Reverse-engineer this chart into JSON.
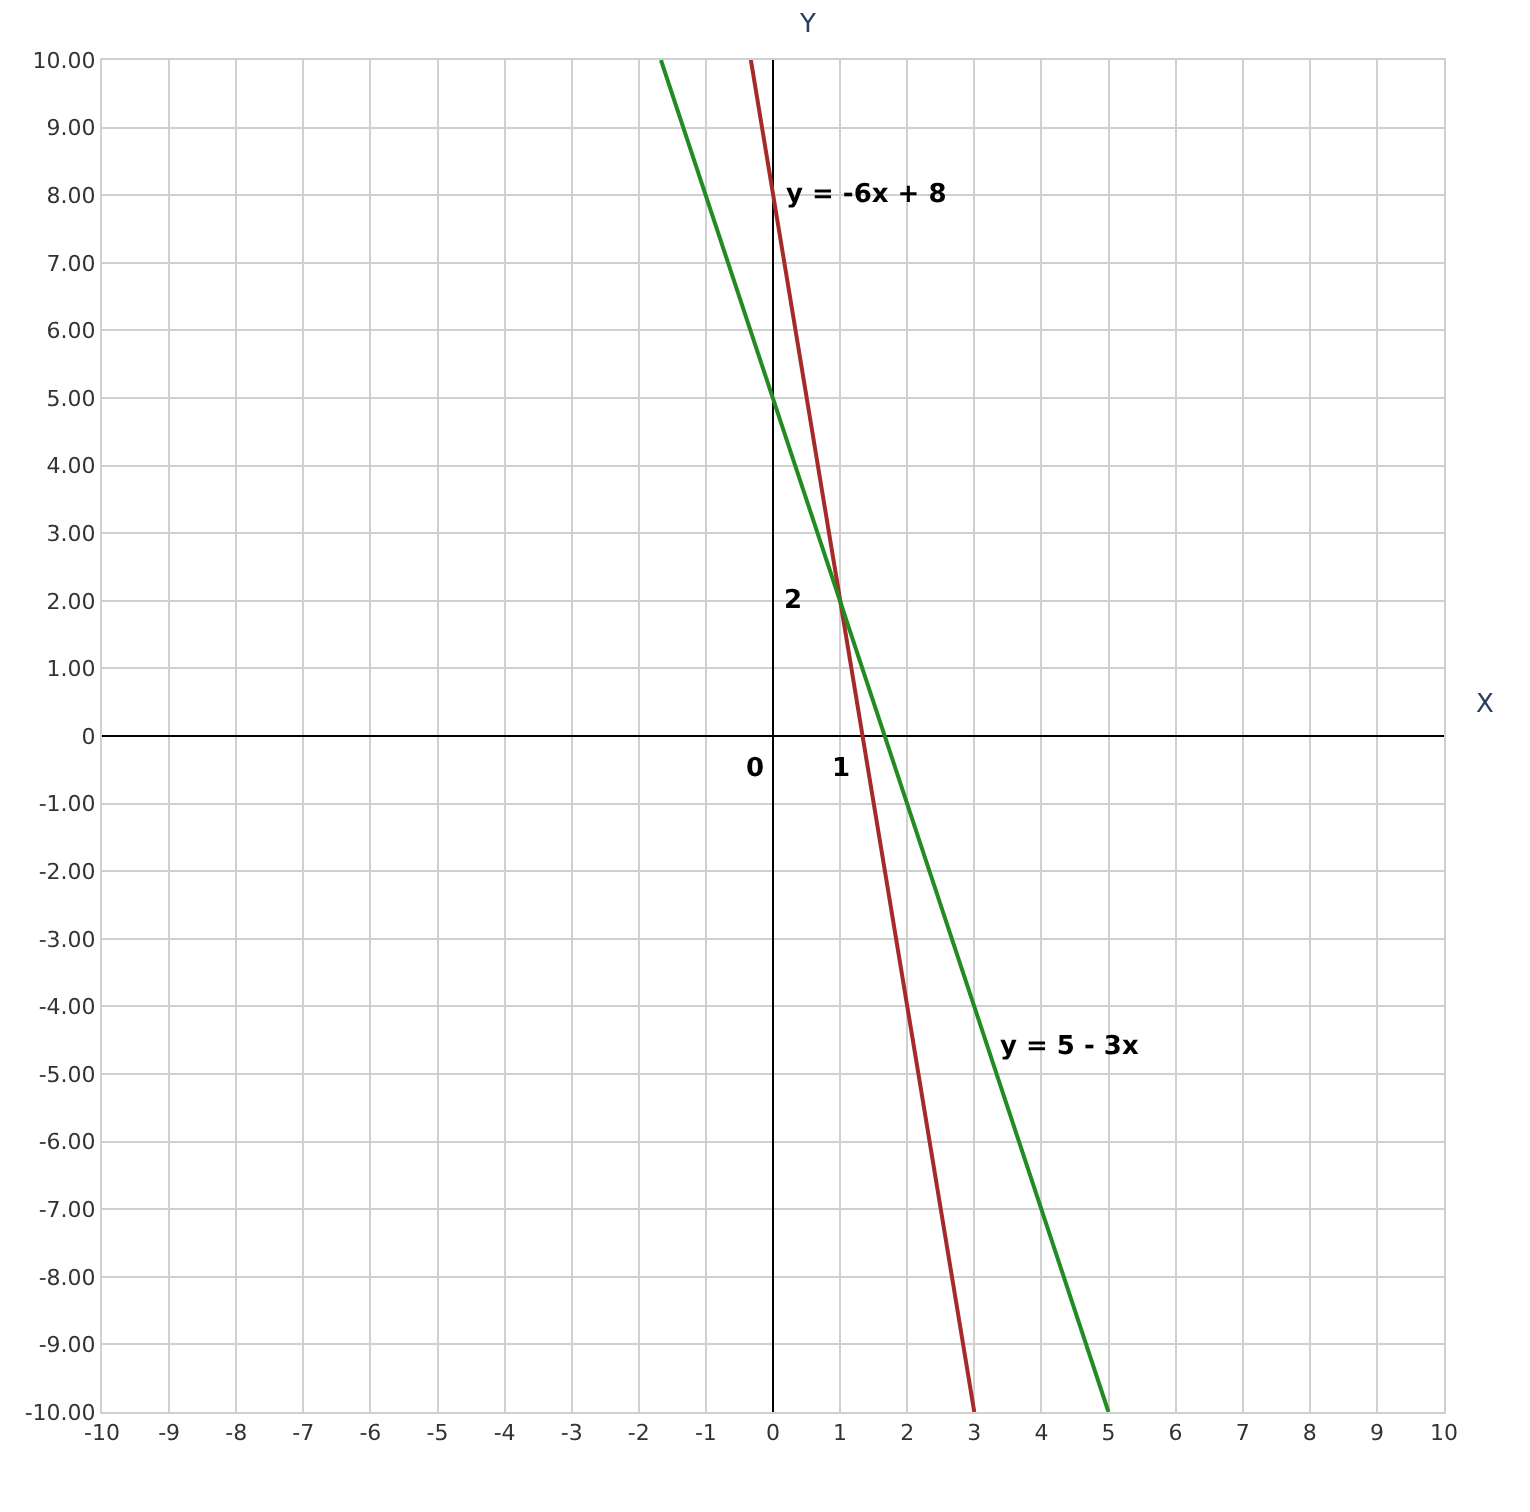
{
  "chart_data": {
    "type": "line",
    "xlabel": "X",
    "ylabel": "Y",
    "series": [
      {
        "color": "#a52a2a",
        "x": [
          -0.33,
          3
        ],
        "values": [
          10,
          -10
        ]
      },
      {
        "color": "#228b22",
        "x": [
          -1.67,
          5
        ],
        "values": [
          10,
          -10
        ]
      }
    ],
    "annotations": [
      {
        "text": "y = -6x + 8",
        "x": 0,
        "y": 8
      },
      {
        "text": "y = 5 - 3x",
        "x": 3.2,
        "y": -4.6
      },
      "2",
      "0",
      "1"
    ],
    "xlim": [
      -10,
      10
    ],
    "ylim": [
      -10,
      10
    ],
    "xticks": [
      -10,
      -9,
      -8,
      -7,
      -6,
      -5,
      -4,
      -3,
      -2,
      -1,
      0,
      1,
      2,
      3,
      4,
      5,
      6,
      7,
      8,
      9,
      10
    ],
    "yticks": [
      {
        "value": 10,
        "label": "10.00"
      },
      {
        "value": 9,
        "label": "9.00"
      },
      {
        "value": 8,
        "label": "8.00"
      },
      {
        "value": 7,
        "label": "7.00"
      },
      {
        "value": 6,
        "label": "6.00"
      },
      {
        "value": 5,
        "label": "5.00"
      },
      {
        "value": 4,
        "label": "4.00"
      },
      {
        "value": 3,
        "label": "3.00"
      },
      {
        "value": 2,
        "label": "2.00"
      },
      {
        "value": 1,
        "label": "1.00"
      },
      0,
      {
        "value": -1,
        "label": "-1.00"
      },
      {
        "value": -2,
        "label": "-2.00"
      },
      {
        "value": -3,
        "label": "-3.00"
      },
      {
        "value": -4,
        "label": "-4.00"
      },
      {
        "value": -5,
        "label": "-5.00"
      },
      {
        "value": -6,
        "label": "-6.00"
      },
      {
        "value": -7,
        "label": "-7.00"
      },
      {
        "value": -8,
        "label": "-8.00"
      },
      {
        "value": -9,
        "label": "-9.00"
      },
      {
        "value": -10,
        "label": "-10.00"
      }
    ],
    "grid": true,
    "marker": "none",
    "line_style": "solid"
  }
}
